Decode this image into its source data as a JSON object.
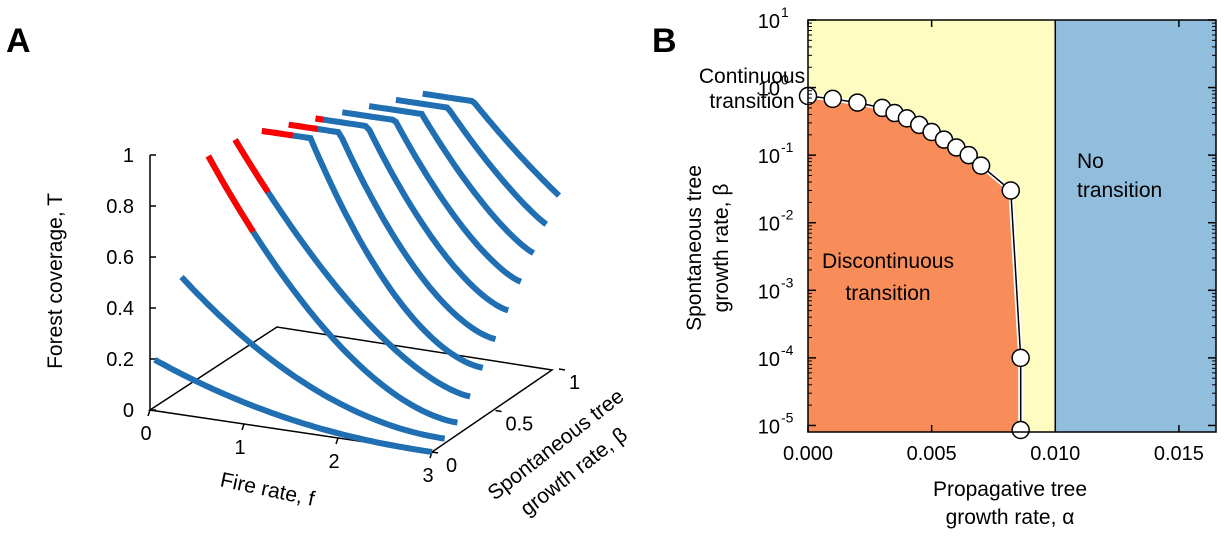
{
  "panel_a": {
    "letter": "A",
    "z_label": "Forest coverage, T",
    "x_label": "Fire rate, f",
    "y_label_line1": "Spontaneous tree",
    "y_label_line2": "growth rate, β"
  },
  "panel_b": {
    "letter": "B",
    "y_label_line1": "Spontaneous tree",
    "y_label_line2": "growth rate, β",
    "x_label_line1": "Propagative tree",
    "x_label_line2": "growth rate, α",
    "region_continuous_line1": "Continuous",
    "region_continuous_line2": "transition",
    "region_discontinuous_line1": "Discontinuous",
    "region_discontinuous_line2": "transition",
    "region_none_line1": "No",
    "region_none_line2": "transition"
  },
  "colors": {
    "curve": "#1f6fb2",
    "unstable": "#ff0000",
    "discontinuous": "#f98d5a",
    "continuous": "#fffcc2",
    "none": "#92bedd"
  },
  "chart_data": [
    {
      "type": "line",
      "kind": "3d-line-stack",
      "x_axis": {
        "label": "Fire rate, f",
        "range": [
          0,
          3
        ],
        "ticks": [
          "0",
          "1",
          "2",
          "3"
        ]
      },
      "y_axis": {
        "label": "Spontaneous tree growth rate, β",
        "range": [
          0,
          1
        ],
        "ticks": [
          "0",
          "0.5",
          "1"
        ]
      },
      "z_axis": {
        "label": "Forest coverage, T",
        "range": [
          0,
          1
        ],
        "ticks": [
          "0",
          "0.2",
          "0.4",
          "0.6",
          "0.8",
          "1"
        ]
      },
      "series": [
        {
          "beta": 0.0,
          "f": [
            0.05,
            3.0
          ],
          "T": [
            0.2,
            0.0
          ]
        },
        {
          "beta": 0.1,
          "f": [
            0.2,
            3.0
          ],
          "T": [
            0.5,
            0.02
          ]
        },
        {
          "beta": 0.2,
          "f": [
            0.35,
            3.0
          ],
          "T": [
            0.95,
            0.05
          ]
        },
        {
          "beta": 0.3,
          "f": [
            0.5,
            3.0
          ],
          "T": [
            0.99,
            0.12
          ]
        },
        {
          "beta": 0.4,
          "f": [
            0.65,
            3.0
          ],
          "T": [
            1.0,
            0.2
          ]
        },
        {
          "beta": 0.5,
          "f": [
            0.8,
            3.0
          ],
          "T": [
            1.0,
            0.28
          ]
        },
        {
          "beta": 0.6,
          "f": [
            0.95,
            3.0
          ],
          "T": [
            1.0,
            0.36
          ]
        },
        {
          "beta": 0.7,
          "f": [
            1.1,
            3.0
          ],
          "T": [
            1.0,
            0.44
          ]
        },
        {
          "beta": 0.8,
          "f": [
            1.25,
            3.0
          ],
          "T": [
            1.0,
            0.52
          ]
        },
        {
          "beta": 0.9,
          "f": [
            1.4,
            3.0
          ],
          "T": [
            1.0,
            0.6
          ]
        },
        {
          "beta": 1.0,
          "f": [
            1.55,
            3.0
          ],
          "T": [
            1.0,
            0.68
          ]
        }
      ],
      "unstable_branch_color": "red",
      "stable_branch_color": "blue"
    },
    {
      "type": "area",
      "kind": "phase-diagram",
      "x_axis": {
        "label": "Propagative tree growth rate, α",
        "range": [
          0,
          0.0165
        ],
        "ticks": [
          "0.000",
          "0.005",
          "0.010",
          "0.015"
        ]
      },
      "y_axis": {
        "label": "Spontaneous tree growth rate, β",
        "scale": "log",
        "range": [
          8e-06,
          10
        ],
        "ticks": [
          {
            "base": "10",
            "exp": "1"
          },
          {
            "base": "10",
            "exp": "0"
          },
          {
            "base": "10",
            "exp": "-1"
          },
          {
            "base": "10",
            "exp": "-2"
          },
          {
            "base": "10",
            "exp": "-3"
          },
          {
            "base": "10",
            "exp": "-4"
          },
          {
            "base": "10",
            "exp": "-5"
          }
        ]
      },
      "regions": [
        {
          "name": "Discontinuous transition",
          "alpha_max_boundary": "curve"
        },
        {
          "name": "Continuous transition",
          "alpha_range": [
            0,
            0.01
          ]
        },
        {
          "name": "No transition",
          "alpha_range": [
            0.01,
            0.0165
          ]
        }
      ],
      "boundary": {
        "alpha": [
          0.0,
          0.001,
          0.002,
          0.003,
          0.0035,
          0.004,
          0.0045,
          0.005,
          0.0055,
          0.006,
          0.0065,
          0.007,
          0.0082,
          0.0086,
          0.0086
        ],
        "beta": [
          0.75,
          0.68,
          0.6,
          0.5,
          0.42,
          0.35,
          0.28,
          0.22,
          0.17,
          0.13,
          0.1,
          0.07,
          0.03,
          0.0001,
          8e-06
        ]
      },
      "vertical_line_alpha": 0.01
    }
  ]
}
